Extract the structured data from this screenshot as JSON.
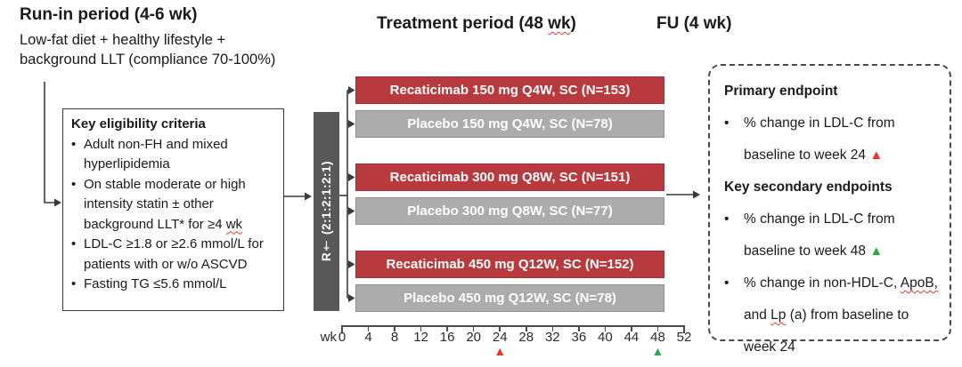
{
  "header": {
    "runin_title": "Run-in period (4-6 wk)",
    "runin_line1": "Low-fat diet + healthy lifestyle +",
    "runin_line2": "background LLT (compliance 70-100%)",
    "treatment_prefix": "Treatment period (48 ",
    "treatment_wk": "wk",
    "treatment_suffix": ")",
    "fu_title": "FU (4 wk)"
  },
  "eligibility": {
    "title": "Key eligibility criteria",
    "bullets": [
      [
        {
          "t": "Adult non-FH and mixed hyperlipidemia",
          "sq": false
        }
      ],
      [
        {
          "t": "On stable moderate or high intensity statin ± other background LLT* for ≥4 ",
          "sq": false
        },
        {
          "t": "wk",
          "sq": true
        }
      ],
      [
        {
          "t": "LDL-C ≥1.8 or ≥2.6 mmol/L for patients with or w/o ASCVD",
          "sq": false
        }
      ],
      [
        {
          "t": "Fasting TG ≤5.6 mmol/L",
          "sq": false
        }
      ]
    ]
  },
  "randomization": {
    "label": "R† (2:1:2:1:2:1)"
  },
  "arms": [
    {
      "label": "Recaticimab 150 mg Q4W, SC (N=153)",
      "type": "active"
    },
    {
      "label": "Placebo 150 mg Q4W, SC (N=78)",
      "type": "placebo"
    },
    {
      "label": "Recaticimab 300 mg Q8W, SC (N=151)",
      "type": "active"
    },
    {
      "label": "Placebo 300 mg Q8W, SC (N=77)",
      "type": "placebo"
    },
    {
      "label": "Recaticimab 450 mg Q12W, SC (N=152)",
      "type": "active"
    },
    {
      "label": "Placebo 450 mg Q12W, SC (N=78)",
      "type": "placebo"
    }
  ],
  "week_axis": {
    "unit_label": "wk",
    "min": 0,
    "max": 52,
    "ticks": [
      0,
      4,
      8,
      12,
      16,
      20,
      24,
      28,
      32,
      36,
      40,
      44,
      48,
      52
    ],
    "markers": [
      {
        "week": 24,
        "color_key": "marker_red"
      },
      {
        "week": 48,
        "color_key": "marker_green"
      }
    ]
  },
  "endpoints": {
    "primary_heading": "Primary endpoint",
    "primary_bullet": "% change in LDL-C from baseline to week 24",
    "secondary_heading": "Key secondary endpoints",
    "secondary_bullet_1": "% change in LDL-C from baseline to week 48",
    "bullet3_p1": "% change in non-HDL-C, ",
    "bullet3_apob": "ApoB,",
    "bullet3_p2": " and ",
    "bullet3_lp": "Lp",
    "bullet3_p3": " (a) from baseline to week 24"
  },
  "glyphs": {
    "bullet": "•",
    "triangle": "▲"
  },
  "colors": {
    "active_fill": "#b8393e",
    "active_border": "#9a3035",
    "placebo_fill": "#acacac",
    "placebo_border": "#8f8f8f",
    "rand_box": "#58595b",
    "marker_red": "#ee342a",
    "marker_green": "#2fa84e",
    "connector": "#3a3a3a"
  }
}
